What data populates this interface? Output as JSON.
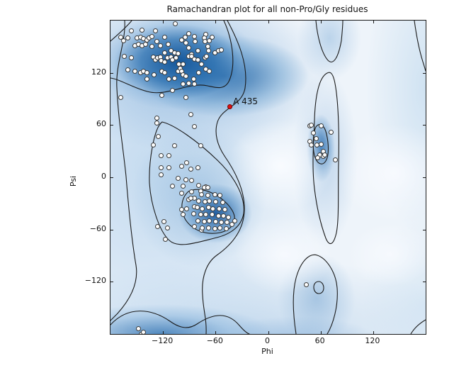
{
  "chart_data": {
    "type": "scatter",
    "title": "Ramachandran plot for all non-Pro/Gly residues",
    "xlabel": "Phi",
    "ylabel": "Psi",
    "xlim": [
      -180,
      180
    ],
    "ylim": [
      -180,
      180
    ],
    "xticks": [
      -120,
      -60,
      0,
      60,
      120
    ],
    "xtick_labels": [
      "−120",
      "−60",
      "0",
      "60",
      "120"
    ],
    "yticks": [
      120,
      60,
      0,
      -60,
      -120
    ],
    "ytick_labels": [
      "120",
      "60",
      "0",
      "−60",
      "−120"
    ],
    "grid": false,
    "legend": null,
    "marked_point": {
      "label": "A 435",
      "phi": -44,
      "psi": 81
    },
    "colors": {
      "point_fill": "#fdfdfd",
      "point_edge": "#3a3a3a",
      "marked_point": "#e01010",
      "contour_line": "#1a1a1a",
      "density_dark": "#125498",
      "density_light": "#dceaf6",
      "plot_background": "#eef4fa",
      "figure_background": "#ffffff"
    },
    "points": [
      [
        -156,
        168
      ],
      [
        -144,
        169
      ],
      [
        -129,
        168
      ],
      [
        -106,
        176
      ],
      [
        -91,
        165
      ],
      [
        -84,
        162
      ],
      [
        -71,
        164
      ],
      [
        -64,
        161
      ],
      [
        -168,
        161
      ],
      [
        -165,
        157
      ],
      [
        -160,
        160
      ],
      [
        -150,
        160
      ],
      [
        -146,
        161
      ],
      [
        -142,
        159
      ],
      [
        -138,
        158
      ],
      [
        -136,
        160
      ],
      [
        -133,
        162
      ],
      [
        -127,
        156
      ],
      [
        -118,
        161
      ],
      [
        -114,
        153
      ],
      [
        -99,
        158
      ],
      [
        -95,
        161
      ],
      [
        -94,
        154
      ],
      [
        -83,
        156
      ],
      [
        -73,
        160
      ],
      [
        -72,
        156
      ],
      [
        -67,
        157
      ],
      [
        -152,
        151
      ],
      [
        -148,
        153
      ],
      [
        -144,
        151
      ],
      [
        -140,
        153
      ],
      [
        -133,
        150
      ],
      [
        -123,
        151
      ],
      [
        -118,
        143
      ],
      [
        -111,
        145
      ],
      [
        -107,
        143
      ],
      [
        -103,
        142
      ],
      [
        -91,
        149
      ],
      [
        -87,
        141
      ],
      [
        -80,
        145
      ],
      [
        -69,
        150
      ],
      [
        -68,
        145
      ],
      [
        -61,
        143
      ],
      [
        -57,
        145
      ],
      [
        -53,
        146
      ],
      [
        -164,
        139
      ],
      [
        -156,
        137
      ],
      [
        -131,
        138
      ],
      [
        -129,
        135
      ],
      [
        -126,
        137
      ],
      [
        -123,
        138
      ],
      [
        -122,
        134
      ],
      [
        -118,
        132
      ],
      [
        -115,
        137
      ],
      [
        -111,
        138
      ],
      [
        -109,
        135
      ],
      [
        -105,
        137
      ],
      [
        -102,
        130
      ],
      [
        -97,
        130
      ],
      [
        -91,
        139
      ],
      [
        -87,
        139
      ],
      [
        -84,
        136
      ],
      [
        -80,
        135
      ],
      [
        -76,
        130
      ],
      [
        -72,
        137
      ],
      [
        -70,
        139
      ],
      [
        -160,
        123
      ],
      [
        -152,
        122
      ],
      [
        -146,
        120
      ],
      [
        -142,
        122
      ],
      [
        -138,
        120
      ],
      [
        -130,
        118
      ],
      [
        -121,
        122
      ],
      [
        -118,
        120
      ],
      [
        -113,
        113
      ],
      [
        -107,
        114
      ],
      [
        -103,
        122
      ],
      [
        -100,
        125
      ],
      [
        -99,
        122
      ],
      [
        -97,
        118
      ],
      [
        -94,
        116
      ],
      [
        -85,
        113
      ],
      [
        -79,
        120
      ],
      [
        -71,
        124
      ],
      [
        -67,
        122
      ],
      [
        -138,
        113
      ],
      [
        -109,
        100
      ],
      [
        -97,
        107
      ],
      [
        -91,
        108
      ],
      [
        -84,
        107
      ],
      [
        -121,
        94
      ],
      [
        -94,
        92
      ],
      [
        -168,
        92
      ],
      [
        -127,
        68
      ],
      [
        -127,
        62
      ],
      [
        -88,
        72
      ],
      [
        -84,
        58
      ],
      [
        -125,
        47
      ],
      [
        -131,
        37
      ],
      [
        -107,
        36
      ],
      [
        -77,
        36
      ],
      [
        -122,
        25
      ],
      [
        -113,
        25
      ],
      [
        -93,
        17
      ],
      [
        -122,
        11
      ],
      [
        -113,
        11
      ],
      [
        -80,
        11
      ],
      [
        -122,
        3
      ],
      [
        -99,
        13
      ],
      [
        -88,
        9
      ],
      [
        -103,
        -1
      ],
      [
        -94,
        -3
      ],
      [
        -87,
        -4
      ],
      [
        -109,
        -10
      ],
      [
        -97,
        -10
      ],
      [
        -79,
        -9
      ],
      [
        -71,
        -11
      ],
      [
        -99,
        -18
      ],
      [
        -87,
        -17
      ],
      [
        -84,
        -24
      ],
      [
        -77,
        -16
      ],
      [
        -73,
        -12
      ],
      [
        -69,
        -12
      ],
      [
        -91,
        -26
      ],
      [
        -88,
        -24
      ],
      [
        -99,
        -37
      ],
      [
        -93,
        -36
      ],
      [
        -84,
        -34
      ],
      [
        -97,
        -43
      ],
      [
        -119,
        -51
      ],
      [
        -126,
        -57
      ],
      [
        -115,
        -58
      ],
      [
        -117,
        -71
      ],
      [
        -84,
        -57
      ],
      [
        -76,
        -61
      ],
      [
        -76,
        -20
      ],
      [
        -69,
        -21
      ],
      [
        -61,
        -20
      ],
      [
        -55,
        -21
      ],
      [
        -79,
        -27
      ],
      [
        -72,
        -28
      ],
      [
        -67,
        -27
      ],
      [
        -60,
        -28
      ],
      [
        -52,
        -29
      ],
      [
        -81,
        -35
      ],
      [
        -75,
        -36
      ],
      [
        -68,
        -35
      ],
      [
        -63,
        -36
      ],
      [
        -56,
        -36
      ],
      [
        -49,
        -37
      ],
      [
        -85,
        -42
      ],
      [
        -77,
        -43
      ],
      [
        -71,
        -43
      ],
      [
        -64,
        -43
      ],
      [
        -57,
        -44
      ],
      [
        -51,
        -44
      ],
      [
        -45,
        -46
      ],
      [
        -80,
        -50
      ],
      [
        -73,
        -51
      ],
      [
        -67,
        -50
      ],
      [
        -60,
        -51
      ],
      [
        -53,
        -52
      ],
      [
        -47,
        -52
      ],
      [
        -75,
        -58
      ],
      [
        -68,
        -58
      ],
      [
        -61,
        -59
      ],
      [
        -55,
        -58
      ],
      [
        -48,
        -59
      ],
      [
        -41,
        -54
      ],
      [
        -38,
        -50
      ],
      [
        48,
        59
      ],
      [
        49,
        60
      ],
      [
        61,
        59
      ],
      [
        72,
        52
      ],
      [
        52,
        51
      ],
      [
        48,
        41
      ],
      [
        49,
        37
      ],
      [
        55,
        44
      ],
      [
        56,
        37
      ],
      [
        61,
        38
      ],
      [
        63,
        30
      ],
      [
        59,
        26
      ],
      [
        57,
        22
      ],
      [
        63,
        24
      ],
      [
        65,
        26
      ],
      [
        77,
        20
      ],
      [
        44,
        -123
      ],
      [
        -148,
        -174
      ],
      [
        -145,
        -180
      ],
      [
        -142,
        -178
      ]
    ],
    "contour_paths": [
      "M 165,0 C 180,28 195,62 190,95 C 186,120 158,122 151,143 C 146,159 151,176 161,191 C 177,214 190,241 189,268 C 188,297 170,317 150,331 C 136,341 128,361 130,387 C 131,409 136,421 135,442",
      "M 20,0 C 22,30 7,60 9,95 C 11,140 18,180 22,220 C 26,270 30,310 36,345 C 40,370 28,393 10,413 C 7,416 3,420 0,423",
      "M 0,429 C 25,402 58,406 84,424 C 98,434 110,436 122,428 C 146,412 166,411 182,430 C 189,438 193,441 196,442",
      "M 160,0 C 172,26 178,63 167,86 C 160,99 147,94 137,92 C 109,86 80,108 52,100 C 32,95 14,83 0,81",
      "M 30,0 C 22,10 10,20 0,29",
      "M 73,143 C 90,147 122,169 151,197 C 172,217 191,246 188,272 C 185,290 170,301 150,306 C 122,313 96,322 83,310 C 69,297 57,261 55,229 C 54,200 61,151 73,143 Z",
      "M 110,241 C 130,231 161,249 172,268 C 180,282 172,295 155,299 C 135,303 116,296 106,281 C 98,268 99,251 110,241 Z",
      "M 306,74 C 294,80 289,108 288,140 C 287,172 284,205 288,237 C 291,262 297,288 304,307 C 309,319 315,317 319,299 C 323,279 321,240 322,200 C 323,160 322,110 316,84 C 313,73 310,72 306,74 Z",
      "M 290,150 C 295,143 302,147 305,160 C 308,173 309,190 304,198 C 299,206 291,202 288,190 C 285,178 286,158 290,150 Z",
      "M 287,376 C 287,371 290,368 294,368 C 298,368 301,372 301,377 C 301,382 298,385 294,385 C 290,385 287,381 287,376 Z",
      "M 262,442 C 258,416 256,386 262,363 C 268,341 280,327 292,331 C 304,335 318,353 320,377 C 322,403 314,429 306,442",
      "M 290,0 C 292,22 298,46 307,56 C 315,64 322,51 326,28 C 327,18 328,8 328,0",
      "M 429,0 C 432,22 436,42 441,58 C 443,64 444,68 445,71",
      "M 424,442 C 430,432 438,426 445,422"
    ]
  }
}
